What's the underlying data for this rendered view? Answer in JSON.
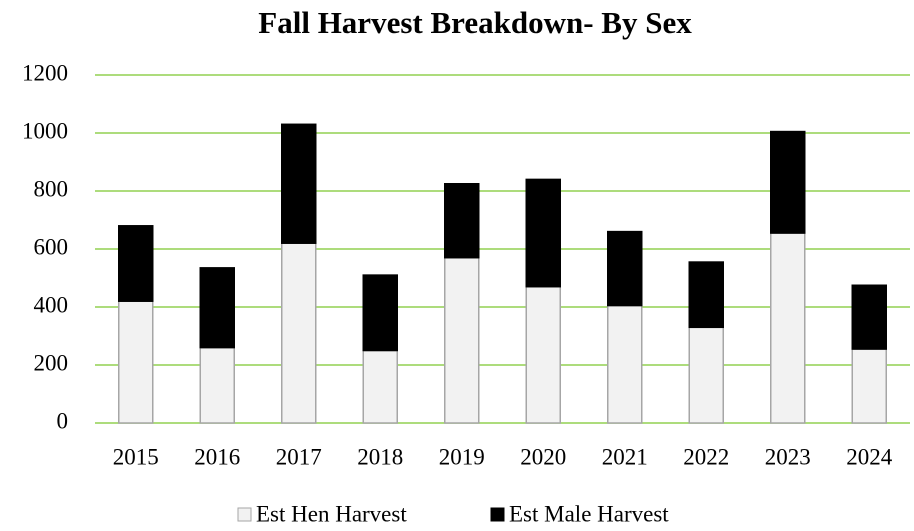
{
  "chart_data": {
    "type": "stacked_bar",
    "title": "Fall Harvest Breakdown- By Sex",
    "categories": [
      "2015",
      "2016",
      "2017",
      "2018",
      "2019",
      "2020",
      "2021",
      "2022",
      "2023",
      "2024"
    ],
    "series": [
      {
        "name": "Est Hen Harvest",
        "color": "#f2f2f2",
        "values": [
          420,
          260,
          620,
          250,
          570,
          470,
          405,
          330,
          655,
          255
        ]
      },
      {
        "name": "Est Male Harvest",
        "color": "#000000",
        "values": [
          260,
          275,
          410,
          260,
          255,
          370,
          255,
          225,
          350,
          220
        ]
      }
    ],
    "ylim": [
      0,
      1200
    ],
    "yticks": [
      0,
      200,
      400,
      600,
      800,
      1000,
      1200
    ],
    "grid": true,
    "legend": "bottom"
  }
}
